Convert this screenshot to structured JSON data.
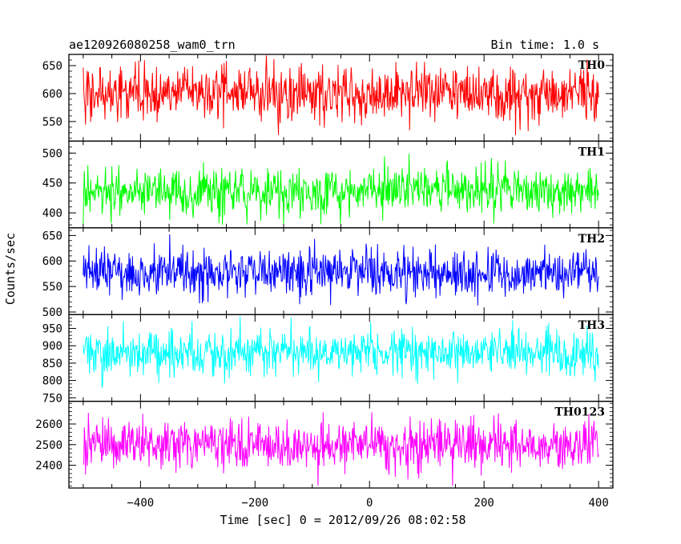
{
  "header": {
    "file_name": "ae120926080258_wam0_trn",
    "bin_time": "Bin time: 1.0 s"
  },
  "chart_data": {
    "type": "line",
    "xlabel": "Time [sec] 0 = 2012/09/26 08:02:58",
    "ylabel": "Counts/sec",
    "xlim": [
      -525,
      425
    ],
    "x_ticks": [
      -400,
      -200,
      0,
      200,
      400
    ],
    "x_range": [
      -500,
      400
    ],
    "bin_time_s": 1.0,
    "panels": [
      {
        "name": "TH0",
        "color": "#ff0000",
        "ylim": [
          515,
          670
        ],
        "y_ticks": [
          550,
          600,
          650
        ],
        "mean": 600,
        "sigma": 24,
        "min": 520,
        "max": 670
      },
      {
        "name": "TH1",
        "color": "#00ff00",
        "ylim": [
          375,
          520
        ],
        "y_ticks": [
          400,
          450,
          500
        ],
        "mean": 437,
        "sigma": 20,
        "min": 380,
        "max": 515
      },
      {
        "name": "TH2",
        "color": "#0000ff",
        "ylim": [
          495,
          665
        ],
        "y_ticks": [
          500,
          550,
          600,
          650
        ],
        "mean": 578,
        "sigma": 23,
        "min": 498,
        "max": 665
      },
      {
        "name": "TH3",
        "color": "#00ffff",
        "ylim": [
          740,
          990
        ],
        "y_ticks": [
          750,
          800,
          850,
          900,
          950
        ],
        "mean": 880,
        "sigma": 33,
        "min": 760,
        "max": 985
      },
      {
        "name": "TH0123",
        "color": "#ff00ff",
        "ylim": [
          2290,
          2710
        ],
        "y_ticks": [
          2400,
          2500,
          2600
        ],
        "mean": 2500,
        "sigma": 60,
        "min": 2300,
        "max": 2700
      }
    ]
  }
}
